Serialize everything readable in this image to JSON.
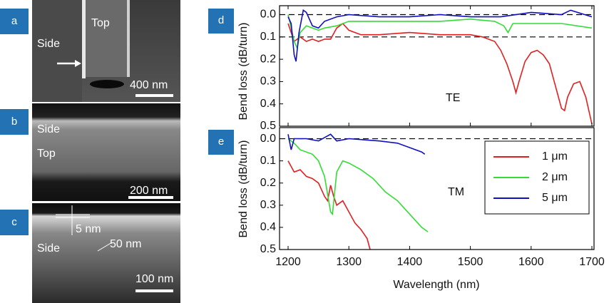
{
  "panels": [
    {
      "label": "a",
      "texts": [
        "Top",
        "Side",
        "400 nm"
      ]
    },
    {
      "label": "b",
      "texts": [
        "Side",
        "Top",
        "200 nm"
      ]
    },
    {
      "label": "c",
      "texts": [
        "5 nm",
        "Side",
        "50 nm",
        "100 nm"
      ]
    }
  ],
  "chart_data": [
    {
      "type": "line",
      "panel_label": "d",
      "y_label": "Bend loss (dB/turn)",
      "annotation": "TE",
      "xlim": [
        1200,
        1700
      ],
      "ylim": [
        -0.04,
        0.5
      ],
      "yticks": [
        {
          "value": 0,
          "label": "0.0"
        },
        0.1,
        0.2,
        0.3,
        0.4,
        0.5
      ],
      "hlines": [
        0,
        0.1
      ],
      "series": [
        {
          "name": "1 μm",
          "color": "#e02020",
          "x": [
            1200,
            1205,
            1210,
            1220,
            1230,
            1240,
            1250,
            1260,
            1270,
            1280,
            1290,
            1300,
            1320,
            1350,
            1400,
            1450,
            1500,
            1520,
            1540,
            1550,
            1560,
            1570,
            1575,
            1580,
            1590,
            1600,
            1610,
            1620,
            1630,
            1640,
            1650,
            1655,
            1660,
            1670,
            1680,
            1690,
            1700
          ],
          "values": [
            0.04,
            0.08,
            0.12,
            0.1,
            0.12,
            0.11,
            0.12,
            0.11,
            0.11,
            0.06,
            0.04,
            0.07,
            0.09,
            0.09,
            0.08,
            0.09,
            0.09,
            0.1,
            0.12,
            0.16,
            0.22,
            0.3,
            0.35,
            0.3,
            0.21,
            0.17,
            0.16,
            0.18,
            0.22,
            0.32,
            0.42,
            0.43,
            0.37,
            0.31,
            0.3,
            0.37,
            0.49
          ]
        },
        {
          "name": "2 μm",
          "color": "#33dd33",
          "x": [
            1200,
            1205,
            1210,
            1215,
            1220,
            1230,
            1240,
            1250,
            1260,
            1280,
            1300,
            1350,
            1400,
            1450,
            1500,
            1540,
            1555,
            1562,
            1570,
            1600,
            1650,
            1700
          ],
          "values": [
            0,
            0.06,
            0.12,
            0.15,
            0.08,
            0.05,
            0.06,
            0.07,
            0.06,
            0.05,
            0.03,
            0.03,
            0.03,
            0.03,
            0.02,
            0.03,
            0.05,
            0.08,
            0.04,
            0.04,
            0.04,
            0.06
          ]
        },
        {
          "name": "5 μm",
          "color": "#1010c0",
          "x": [
            1200,
            1205,
            1210,
            1213,
            1218,
            1225,
            1230,
            1240,
            1250,
            1260,
            1280,
            1300,
            1350,
            1400,
            1450,
            1500,
            1550,
            1600,
            1650,
            1665,
            1700
          ],
          "values": [
            0.01,
            0.04,
            0.18,
            0.21,
            0.08,
            -0.02,
            -0.01,
            0.05,
            0.06,
            0.03,
            0.01,
            0,
            0.01,
            0.01,
            0,
            0.01,
            0.01,
            -0.01,
            0,
            -0.02,
            0.01
          ]
        }
      ]
    },
    {
      "type": "line",
      "panel_label": "e",
      "y_label": "Bend loss (dB/turn)",
      "annotation": "TM",
      "x_label": "Wavelength (nm)",
      "xlim": [
        1200,
        1700
      ],
      "ylim": [
        -0.05,
        0.5
      ],
      "xticks": [
        1200,
        1300,
        1400,
        1500,
        1600,
        1700
      ],
      "yticks": [
        {
          "value": 0,
          "label": "0.0"
        },
        0.1,
        0.2,
        0.3,
        0.4,
        0.5
      ],
      "hlines": [
        0
      ],
      "legend": true,
      "series": [
        {
          "name": "1 μm",
          "color": "#e02020",
          "x": [
            1200,
            1210,
            1220,
            1230,
            1240,
            1250,
            1260,
            1265,
            1270,
            1275,
            1280,
            1290,
            1300,
            1310,
            1320,
            1330,
            1335
          ],
          "values": [
            0.1,
            0.15,
            0.14,
            0.17,
            0.18,
            0.2,
            0.26,
            0.28,
            0.21,
            0.26,
            0.3,
            0.28,
            0.33,
            0.38,
            0.41,
            0.45,
            0.5
          ]
        },
        {
          "name": "2 μm",
          "color": "#33dd33",
          "x": [
            1200,
            1210,
            1220,
            1240,
            1250,
            1260,
            1270,
            1273,
            1280,
            1290,
            1300,
            1320,
            1340,
            1360,
            1380,
            1400,
            1420,
            1430
          ],
          "values": [
            0,
            0.02,
            0.05,
            0.07,
            0.1,
            0.17,
            0.33,
            0.34,
            0.15,
            0.1,
            0.11,
            0.14,
            0.18,
            0.24,
            0.28,
            0.34,
            0.4,
            0.42
          ]
        },
        {
          "name": "5 μm",
          "color": "#1010c0",
          "x": [
            1200,
            1205,
            1210,
            1230,
            1250,
            1270,
            1280,
            1300,
            1350,
            1380,
            1400,
            1420,
            1425
          ],
          "values": [
            -0.02,
            0.05,
            0,
            0,
            0.01,
            -0.02,
            0.01,
            0,
            0.01,
            0.02,
            0.04,
            0.06,
            0.07
          ]
        }
      ]
    }
  ]
}
